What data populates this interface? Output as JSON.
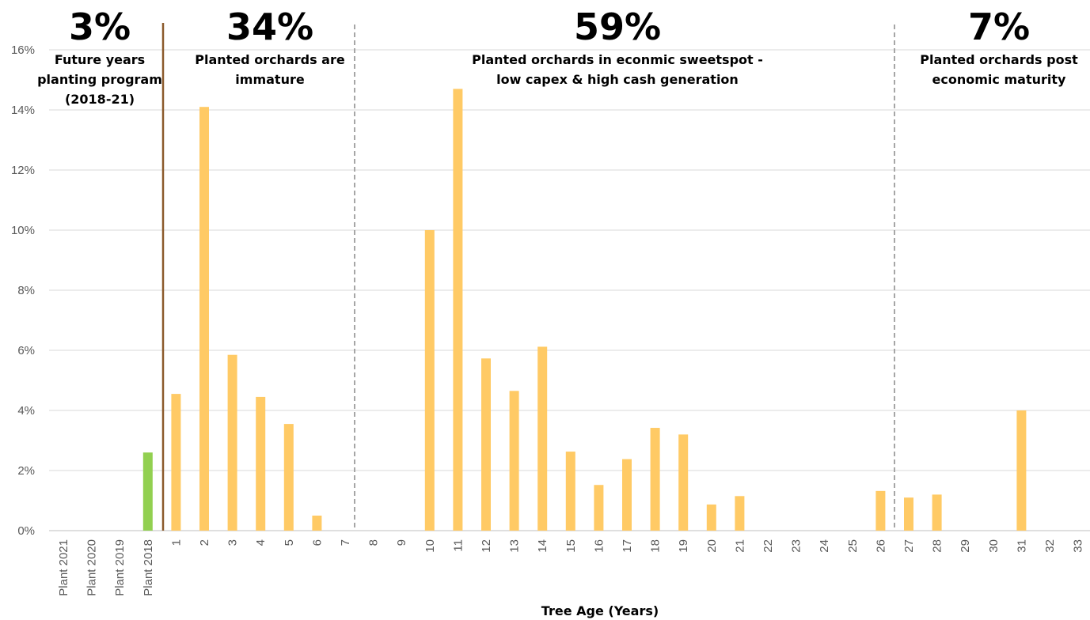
{
  "chart_data": {
    "type": "bar",
    "xlabel": "Tree Age (Years)",
    "ylabel": "",
    "ylim": [
      0,
      0.16
    ],
    "y_ticks": [
      "0%",
      "2%",
      "4%",
      "6%",
      "8%",
      "10%",
      "12%",
      "14%",
      "16%"
    ],
    "grid": true,
    "categories": [
      "Plant 2021",
      "Plant 2020",
      "Plant 2019",
      "Plant 2018",
      "1",
      "2",
      "3",
      "4",
      "5",
      "6",
      "7",
      "8",
      "9",
      "10",
      "11",
      "12",
      "13",
      "14",
      "15",
      "16",
      "17",
      "18",
      "19",
      "20",
      "21",
      "22",
      "23",
      "24",
      "25",
      "26",
      "27",
      "28",
      "29",
      "30",
      "31",
      "32",
      "33"
    ],
    "values": [
      0,
      0,
      0,
      0.026,
      0.0455,
      0.141,
      0.0585,
      0.0445,
      0.0355,
      0.005,
      0,
      0,
      0,
      0.1,
      0.147,
      0.0573,
      0.0465,
      0.0612,
      0.0263,
      0.0152,
      0.0238,
      0.0342,
      0.032,
      0.0087,
      0.0115,
      0,
      0,
      0,
      0,
      0.0132,
      0.011,
      0.012,
      0,
      0,
      0.04,
      0,
      0
    ],
    "bar_colors": {
      "future": "#92d050",
      "planted": "#ffca65"
    },
    "divider_colors": {
      "solid": "#8b5a2b",
      "dashed": "#a6a6a6"
    },
    "segments": [
      {
        "percent": "3%",
        "lines": [
          "Future years",
          "planting program",
          "(2018-21)"
        ]
      },
      {
        "percent": "34%",
        "lines": [
          "Planted orchards are",
          "immature"
        ]
      },
      {
        "percent": "59%",
        "lines": [
          "Planted orchards in econmic sweetspot -",
          "low capex & high cash generation"
        ]
      },
      {
        "percent": "7%",
        "lines": [
          "Planted orchards post",
          "economic maturity"
        ]
      }
    ]
  }
}
